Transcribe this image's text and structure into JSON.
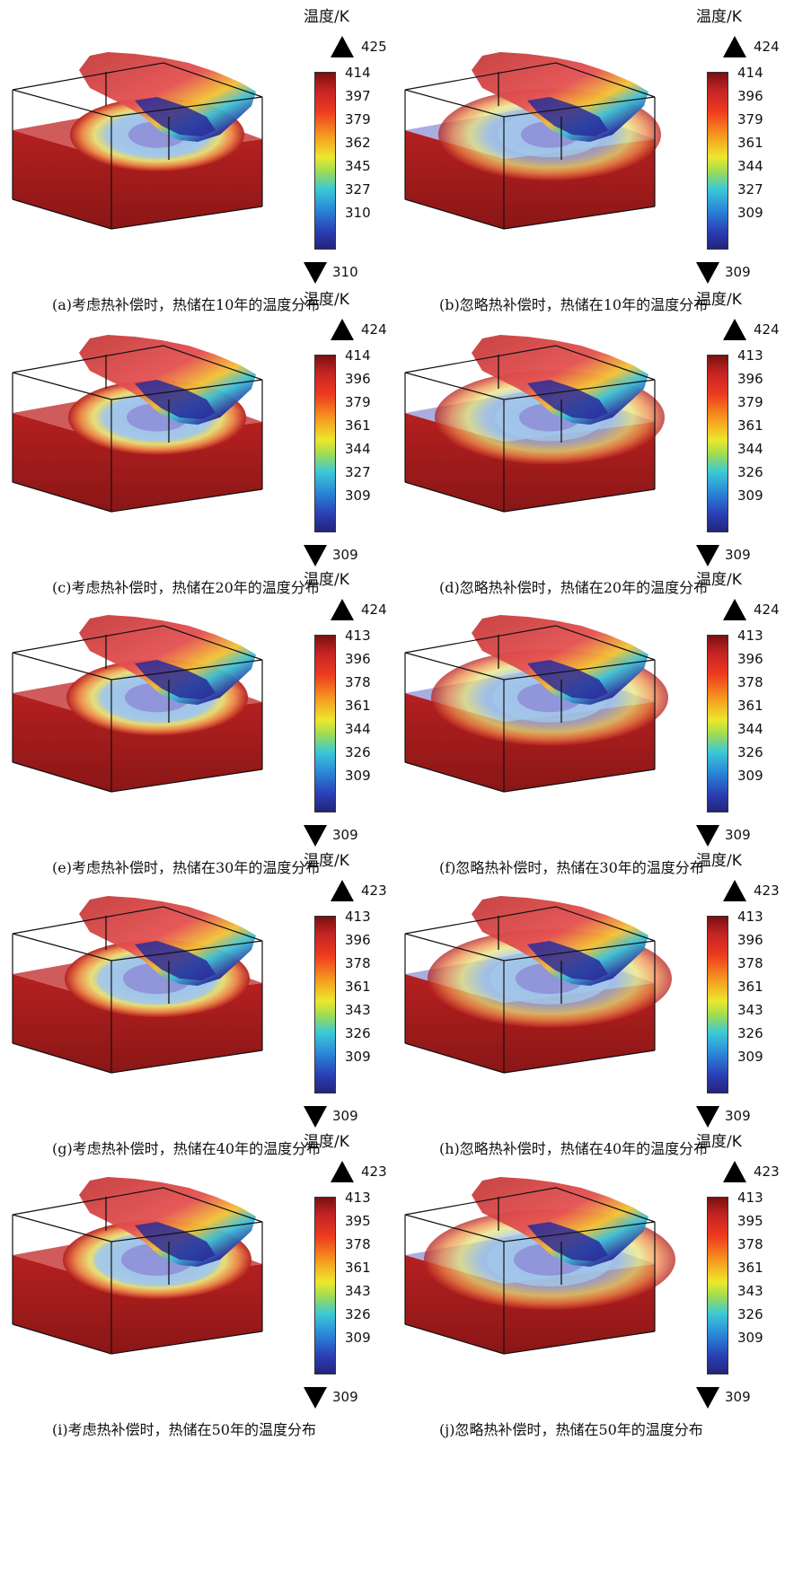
{
  "colors": {
    "hot": "#b52020",
    "cold": "#2a2c9a",
    "box_line": "#111111",
    "slab_side": "#8a1616"
  },
  "panels": [
    {
      "caption": "(a)考虑热补偿时，热储在10年的温度分布",
      "unit": "温度/K",
      "max": "425",
      "min": "310",
      "ticks": [
        "414",
        "397",
        "379",
        "362",
        "345",
        "327",
        "310"
      ],
      "compensated": true,
      "year": 10
    },
    {
      "caption": "(b)忽略热补偿时，热储在10年的温度分布",
      "unit": "温度/K",
      "max": "424",
      "min": "309",
      "ticks": [
        "414",
        "396",
        "379",
        "361",
        "344",
        "327",
        "309"
      ],
      "compensated": false,
      "year": 10
    },
    {
      "caption": "(c)考虑热补偿时，热储在20年的温度分布",
      "unit": "温度/K",
      "max": "424",
      "min": "309",
      "ticks": [
        "414",
        "396",
        "379",
        "361",
        "344",
        "327",
        "309"
      ],
      "compensated": true,
      "year": 20
    },
    {
      "caption": "(d)忽略热补偿时，热储在20年的温度分布",
      "unit": "温度/K",
      "max": "424",
      "min": "309",
      "ticks": [
        "413",
        "396",
        "379",
        "361",
        "344",
        "326",
        "309"
      ],
      "compensated": false,
      "year": 20
    },
    {
      "caption": "(e)考虑热补偿时，热储在30年的温度分布",
      "unit": "温度/K",
      "max": "424",
      "min": "309",
      "ticks": [
        "413",
        "396",
        "378",
        "361",
        "344",
        "326",
        "309"
      ],
      "compensated": true,
      "year": 30
    },
    {
      "caption": "(f)忽略热补偿时，热储在30年的温度分布",
      "unit": "温度/K",
      "max": "424",
      "min": "309",
      "ticks": [
        "413",
        "396",
        "378",
        "361",
        "344",
        "326",
        "309"
      ],
      "compensated": false,
      "year": 30
    },
    {
      "caption": "(g)考虑热补偿时，热储在40年的温度分布",
      "unit": "温度/K",
      "max": "423",
      "min": "309",
      "ticks": [
        "413",
        "396",
        "378",
        "361",
        "343",
        "326",
        "309"
      ],
      "compensated": true,
      "year": 40
    },
    {
      "caption": "(h)忽略热补偿时，热储在40年的温度分布",
      "unit": "温度/K",
      "max": "423",
      "min": "309",
      "ticks": [
        "413",
        "396",
        "378",
        "361",
        "343",
        "326",
        "309"
      ],
      "compensated": false,
      "year": 40
    },
    {
      "caption": "(i)考虑热补偿时，热储在50年的温度分布",
      "unit": "温度/K",
      "max": "423",
      "min": "309",
      "ticks": [
        "413",
        "395",
        "378",
        "361",
        "343",
        "326",
        "309"
      ],
      "compensated": true,
      "year": 50
    },
    {
      "caption": "(j)忽略热补偿时，热储在50年的温度分布",
      "unit": "温度/K",
      "max": "423",
      "min": "309",
      "ticks": [
        "413",
        "395",
        "378",
        "361",
        "343",
        "326",
        "309"
      ],
      "compensated": false,
      "year": 50
    }
  ]
}
